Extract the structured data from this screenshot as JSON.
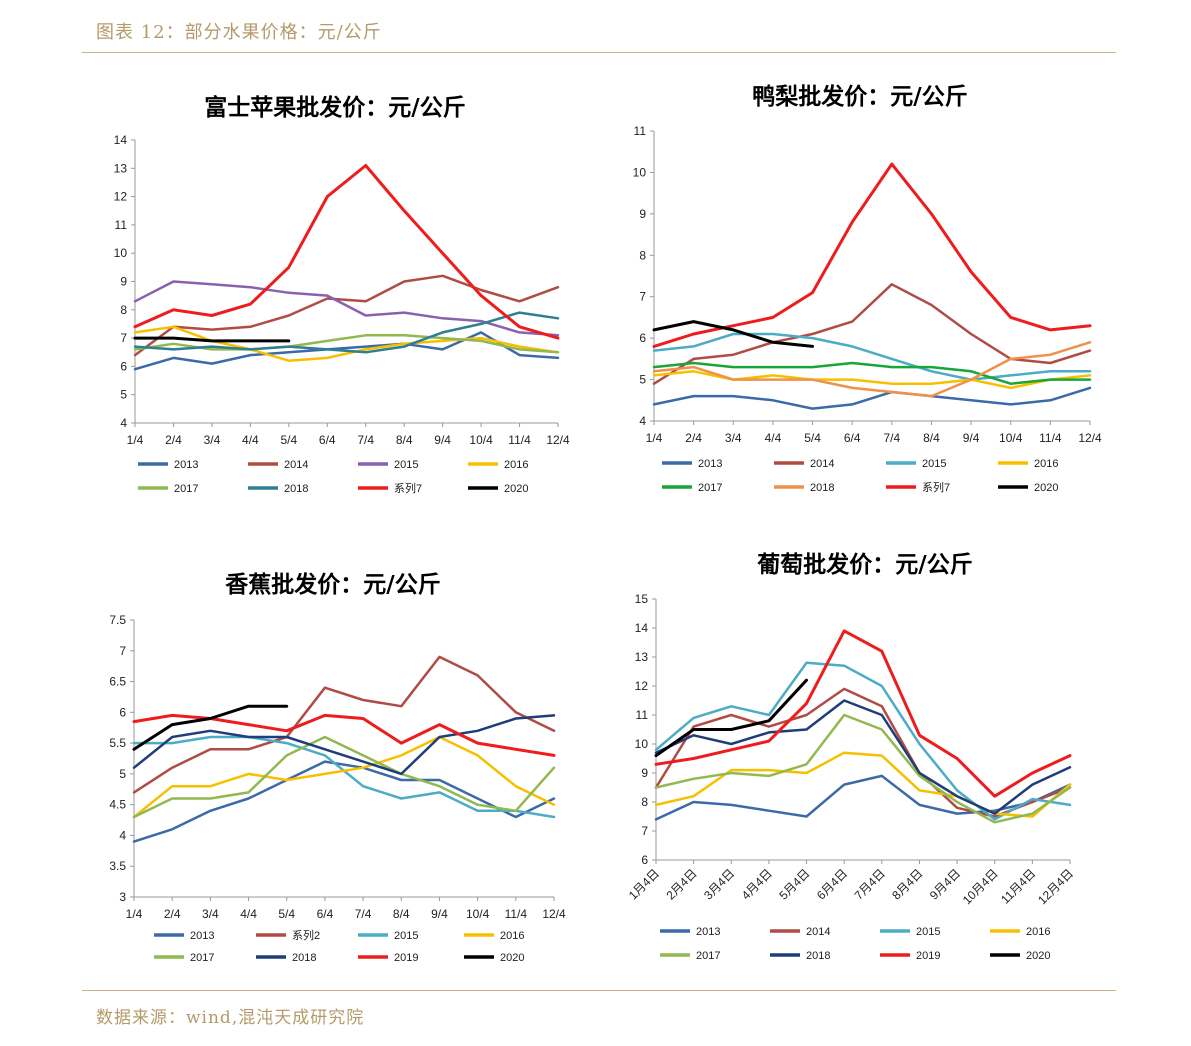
{
  "header": {
    "title": "图表 12：部分水果价格：元/公斤"
  },
  "footer": {
    "source": "数据来源：wind,混沌天成研究院"
  },
  "chart_data": [
    {
      "type": "line",
      "title": "富士苹果批发价：元/公斤",
      "ylim": [
        4,
        14
      ],
      "yticks": [
        4,
        5,
        6,
        7,
        8,
        9,
        10,
        11,
        12,
        13,
        14
      ],
      "xticklabels": [
        "1/4",
        "2/4",
        "3/4",
        "4/4",
        "5/4",
        "6/4",
        "7/4",
        "8/4",
        "9/4",
        "10/4",
        "11/4",
        "12/4"
      ],
      "series": [
        {
          "name": "2013",
          "color": "#3c6aa8",
          "values": [
            5.9,
            6.3,
            6.1,
            6.4,
            6.5,
            6.6,
            6.7,
            6.8,
            6.6,
            7.2,
            6.4,
            6.3
          ]
        },
        {
          "name": "2014",
          "color": "#b04c45",
          "values": [
            6.4,
            7.4,
            7.3,
            7.4,
            7.8,
            8.4,
            8.3,
            9.0,
            9.2,
            8.7,
            8.3,
            8.8
          ]
        },
        {
          "name": "2015",
          "color": "#8a60b0",
          "values": [
            8.3,
            9.0,
            8.9,
            8.8,
            8.6,
            8.5,
            7.8,
            7.9,
            7.7,
            7.6,
            7.2,
            7.1
          ]
        },
        {
          "name": "2016",
          "color": "#f6c000",
          "values": [
            7.2,
            7.4,
            6.9,
            6.6,
            6.2,
            6.3,
            6.6,
            6.8,
            6.9,
            7.0,
            6.7,
            6.5
          ]
        },
        {
          "name": "2017",
          "color": "#92b850",
          "values": [
            6.6,
            6.8,
            6.6,
            6.6,
            6.7,
            6.9,
            7.1,
            7.1,
            7.0,
            6.9,
            6.6,
            6.5
          ]
        },
        {
          "name": "2018",
          "color": "#2e7f8f",
          "values": [
            6.7,
            6.6,
            6.7,
            6.6,
            6.7,
            6.6,
            6.5,
            6.7,
            7.2,
            7.5,
            7.9,
            7.7
          ]
        },
        {
          "name": "系列7",
          "color": "#ee1c1c",
          "values": [
            7.4,
            8.0,
            7.8,
            8.2,
            9.5,
            12.0,
            13.1,
            11.5,
            10.0,
            8.5,
            7.4,
            7.0
          ]
        },
        {
          "name": "2020",
          "color": "#000000",
          "values": [
            7.0,
            7.0,
            6.9,
            6.9,
            6.9
          ]
        }
      ],
      "legend_position": "bottom"
    },
    {
      "type": "line",
      "title": "鸭梨批发价：元/公斤",
      "ylim": [
        4,
        11
      ],
      "yticks": [
        4,
        5,
        6,
        7,
        8,
        9,
        10,
        11
      ],
      "xticklabels": [
        "1/4",
        "2/4",
        "3/4",
        "4/4",
        "5/4",
        "6/4",
        "7/4",
        "8/4",
        "9/4",
        "10/4",
        "11/4",
        "12/4"
      ],
      "series": [
        {
          "name": "2013",
          "color": "#3c6aa8",
          "values": [
            4.4,
            4.6,
            4.6,
            4.5,
            4.3,
            4.4,
            4.7,
            4.6,
            4.5,
            4.4,
            4.5,
            4.8
          ]
        },
        {
          "name": "2014",
          "color": "#b04c45",
          "values": [
            4.9,
            5.5,
            5.6,
            5.9,
            6.1,
            6.4,
            7.3,
            6.8,
            6.1,
            5.5,
            5.4,
            5.7
          ]
        },
        {
          "name": "2015",
          "color": "#4bacc6",
          "values": [
            5.7,
            5.8,
            6.1,
            6.1,
            6.0,
            5.8,
            5.5,
            5.2,
            5.0,
            5.1,
            5.2,
            5.2
          ]
        },
        {
          "name": "2016",
          "color": "#f6c000",
          "values": [
            5.1,
            5.2,
            5.0,
            5.1,
            5.0,
            5.0,
            4.9,
            4.9,
            5.0,
            4.8,
            5.0,
            5.1
          ]
        },
        {
          "name": "2017",
          "color": "#17a637",
          "values": [
            5.3,
            5.4,
            5.3,
            5.3,
            5.3,
            5.4,
            5.3,
            5.3,
            5.2,
            4.9,
            5.0,
            5.0
          ]
        },
        {
          "name": "2018",
          "color": "#f0914a",
          "values": [
            5.2,
            5.3,
            5.0,
            5.0,
            5.0,
            4.8,
            4.7,
            4.6,
            5.0,
            5.5,
            5.6,
            5.9
          ]
        },
        {
          "name": "系列7",
          "color": "#ee1c1c",
          "values": [
            5.8,
            6.1,
            6.3,
            6.5,
            7.1,
            8.8,
            10.2,
            9.0,
            7.6,
            6.5,
            6.2,
            6.3
          ]
        },
        {
          "name": "2020",
          "color": "#000000",
          "values": [
            6.2,
            6.4,
            6.2,
            5.9,
            5.8
          ]
        }
      ],
      "legend_position": "bottom"
    },
    {
      "type": "line",
      "title": "香蕉批发价：元/公斤",
      "ylim": [
        3,
        7.5
      ],
      "yticks": [
        3,
        3.5,
        4,
        4.5,
        5,
        5.5,
        6,
        6.5,
        7,
        7.5
      ],
      "xticklabels": [
        "1/4",
        "2/4",
        "3/4",
        "4/4",
        "5/4",
        "6/4",
        "7/4",
        "8/4",
        "9/4",
        "10/4",
        "11/4",
        "12/4"
      ],
      "series": [
        {
          "name": "2013",
          "color": "#3c6aa8",
          "values": [
            3.9,
            4.1,
            4.4,
            4.6,
            4.9,
            5.2,
            5.1,
            4.9,
            4.9,
            4.6,
            4.3,
            4.6
          ]
        },
        {
          "name": "系列2",
          "color": "#b04c45",
          "values": [
            4.7,
            5.1,
            5.4,
            5.4,
            5.6,
            6.4,
            6.2,
            6.1,
            6.9,
            6.6,
            6.0,
            5.7
          ]
        },
        {
          "name": "2015",
          "color": "#4bacc6",
          "values": [
            5.5,
            5.5,
            5.6,
            5.6,
            5.5,
            5.3,
            4.8,
            4.6,
            4.7,
            4.4,
            4.4,
            4.3
          ]
        },
        {
          "name": "2016",
          "color": "#f6c000",
          "values": [
            4.3,
            4.8,
            4.8,
            5.0,
            4.9,
            5.0,
            5.1,
            5.3,
            5.6,
            5.3,
            4.8,
            4.5
          ]
        },
        {
          "name": "2017",
          "color": "#92b850",
          "values": [
            4.3,
            4.6,
            4.6,
            4.7,
            5.3,
            5.6,
            5.3,
            5.0,
            4.8,
            4.5,
            4.4,
            5.1
          ]
        },
        {
          "name": "2018",
          "color": "#1f3d7a",
          "values": [
            5.1,
            5.6,
            5.7,
            5.6,
            5.6,
            5.4,
            5.2,
            5.0,
            5.6,
            5.7,
            5.9,
            5.95
          ]
        },
        {
          "name": "2019",
          "color": "#ee1c1c",
          "values": [
            5.85,
            5.95,
            5.9,
            5.8,
            5.7,
            5.95,
            5.9,
            5.5,
            5.8,
            5.5,
            5.4,
            5.3
          ]
        },
        {
          "name": "2020",
          "color": "#000000",
          "values": [
            5.4,
            5.8,
            5.9,
            6.1,
            6.1
          ]
        }
      ],
      "legend_position": "bottom"
    },
    {
      "type": "line",
      "title": "葡萄批发价：元/公斤",
      "ylim": [
        6,
        15
      ],
      "yticks": [
        6,
        7,
        8,
        9,
        10,
        11,
        12,
        13,
        14,
        15
      ],
      "xticklabels": [
        "1月4日",
        "2月4日",
        "3月4日",
        "4月4日",
        "5月4日",
        "6月4日",
        "7月4日",
        "8月4日",
        "9月4日",
        "10月4日",
        "11月4日",
        "12月4日"
      ],
      "series": [
        {
          "name": "2013",
          "color": "#3c6aa8",
          "values": [
            7.4,
            8.0,
            7.9,
            7.7,
            7.5,
            8.6,
            8.9,
            7.9,
            7.6,
            7.7,
            8.0,
            8.6
          ]
        },
        {
          "name": "2014",
          "color": "#b04c45",
          "values": [
            8.5,
            10.6,
            11.0,
            10.6,
            11.0,
            11.9,
            11.3,
            9.0,
            7.8,
            7.5,
            8.0,
            8.5
          ]
        },
        {
          "name": "2015",
          "color": "#4bacc6",
          "values": [
            9.8,
            10.9,
            11.3,
            11.0,
            12.8,
            12.7,
            12.0,
            10.0,
            8.4,
            7.4,
            8.1,
            7.9
          ]
        },
        {
          "name": "2016",
          "color": "#f6c000",
          "values": [
            7.9,
            8.2,
            9.1,
            9.1,
            9.0,
            9.7,
            9.6,
            8.4,
            8.2,
            7.6,
            7.5,
            8.6
          ]
        },
        {
          "name": "2017",
          "color": "#92b850",
          "values": [
            8.5,
            8.8,
            9.0,
            8.9,
            9.3,
            11.0,
            10.5,
            8.9,
            8.0,
            7.3,
            7.6,
            8.5
          ]
        },
        {
          "name": "2018",
          "color": "#1f3d7a",
          "values": [
            9.7,
            10.3,
            10.0,
            10.4,
            10.5,
            11.5,
            11.0,
            9.0,
            8.2,
            7.6,
            8.6,
            9.2
          ]
        },
        {
          "name": "2019",
          "color": "#ee1c1c",
          "values": [
            9.3,
            9.5,
            9.8,
            10.1,
            11.4,
            13.9,
            13.2,
            10.3,
            9.5,
            8.2,
            9.0,
            9.6
          ]
        },
        {
          "name": "2020",
          "color": "#000000",
          "values": [
            9.6,
            10.5,
            10.5,
            10.8,
            12.2
          ]
        }
      ],
      "legend_position": "bottom"
    }
  ]
}
